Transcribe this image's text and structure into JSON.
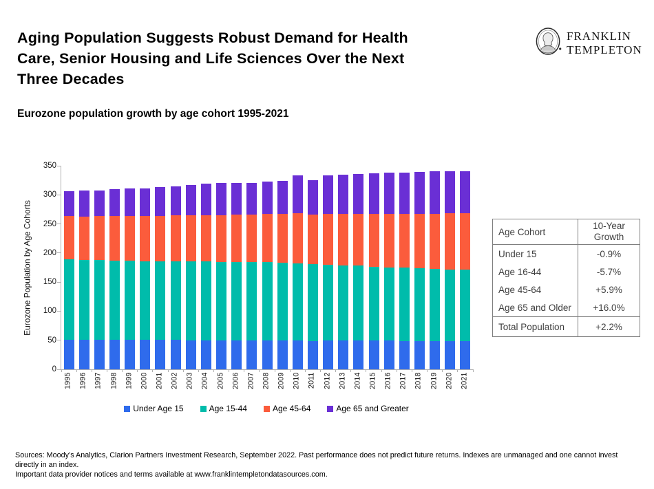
{
  "header": {
    "title_lines": [
      "Aging Population Suggests Robust Demand for Health",
      "Care, Senior Housing and Life Sciences Over the Next",
      "Three Decades"
    ]
  },
  "logo": {
    "line1": "FRANKLIN",
    "line2": "TEMPLETON"
  },
  "subtitle": "Eurozone population growth by age cohort 1995-2021",
  "chart_data": {
    "type": "bar",
    "stacked": true,
    "title": "Eurozone population growth by age cohort 1995-2021",
    "ylabel": "Eurozone Population by Age Cohorts",
    "xlabel": "",
    "ylim": [
      0,
      350
    ],
    "yticks": [
      0,
      50,
      100,
      150,
      200,
      250,
      300,
      350
    ],
    "grid": false,
    "legend_position": "bottom",
    "categories": [
      "1995",
      "1996",
      "1997",
      "1998",
      "1999",
      "2000",
      "2001",
      "2002",
      "2003",
      "2004",
      "2005",
      "2006",
      "2007",
      "2008",
      "2009",
      "2010",
      "2011",
      "2012",
      "2013",
      "2014",
      "2015",
      "2016",
      "2017",
      "2018",
      "2019",
      "2020",
      "2021"
    ],
    "series": [
      {
        "name": "Under Age 15",
        "color": "#2F6BEC",
        "values": [
          51,
          51,
          51,
          51,
          51,
          51,
          51,
          51,
          50,
          50,
          50,
          50,
          50,
          50,
          50,
          50,
          49,
          50,
          50,
          50,
          50,
          50,
          49,
          49,
          49,
          49,
          49
        ]
      },
      {
        "name": "Age 15-44",
        "color": "#00BCAB",
        "values": [
          138,
          137,
          137,
          136,
          136,
          135,
          135,
          135,
          136,
          136,
          135,
          135,
          134,
          134,
          133,
          132,
          132,
          130,
          129,
          128,
          126,
          125,
          126,
          125,
          124,
          123,
          122
        ]
      },
      {
        "name": "Age 45-64",
        "color": "#FB5C3C",
        "values": [
          75,
          75,
          76,
          77,
          77,
          78,
          78,
          79,
          79,
          79,
          80,
          81,
          82,
          83,
          84,
          86,
          85,
          87,
          88,
          89,
          91,
          92,
          92,
          93,
          94,
          96,
          97
        ]
      },
      {
        "name": "Age 65 and Greater",
        "color": "#6A2FD5",
        "values": [
          42,
          44,
          44,
          46,
          47,
          47,
          49,
          50,
          52,
          54,
          55,
          55,
          55,
          56,
          57,
          65,
          59,
          67,
          68,
          69,
          70,
          71,
          71,
          72,
          73,
          73,
          73
        ]
      }
    ]
  },
  "table": {
    "headers": [
      "Age Cohort",
      "10-Year Growth"
    ],
    "rows": [
      [
        "Under 15",
        "-0.9%"
      ],
      [
        "Age 16-44",
        "-5.7%"
      ],
      [
        "Age 45-64",
        "+5.9%"
      ],
      [
        "Age 65 and Older",
        "+16.0%"
      ]
    ],
    "total_row": [
      "Total Population",
      "+2.2%"
    ]
  },
  "footer": {
    "line1": "Sources: Moody’s Analytics, Clarion Partners Investment Research, September 2022. Past performance does not predict future returns. Indexes are unmanaged and one cannot invest directly in an index.",
    "line2": "Important data provider notices and terms available at www.franklintempletondatasources.com."
  }
}
